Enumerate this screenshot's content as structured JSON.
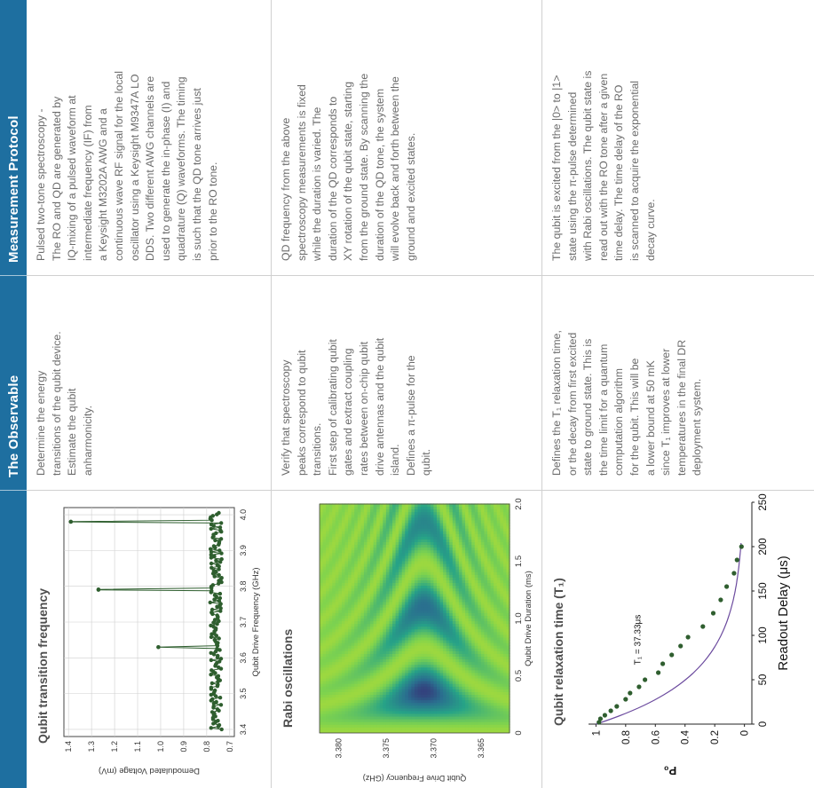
{
  "header": {
    "col1": "",
    "col2": "The Observable",
    "col3": "Measurement Protocol"
  },
  "rows": [
    {
      "panel_title": "Qubit transition frequency",
      "observable": [
        "Determine the energy",
        "transitions of the qubit device.",
        "Estimate the qubit",
        "anharmonicity."
      ],
      "protocol": [
        "Pulsed two-tone spectroscopy -",
        "The RO and QD are generated by",
        "IQ-mixing of a pulsed waveform at",
        "intermediate frequency (IF) from",
        "a Keysight M3202A AWG and a",
        "continuous wave RF signal for the local",
        "oscillator using a Keysight M9347A LO",
        "DDS. Two different AWG channels are",
        "used to generate the in-phase (I) and",
        "quadrature (Q) waveforms. The timing",
        "is such that the QD tone arrives just",
        "prior to the RO tone."
      ]
    },
    {
      "panel_title": "Rabi oscillations",
      "observable": [
        "Verify that spectroscopy",
        "peaks correspond to qubit",
        "transitions.",
        "First step of calibrating qubit",
        "gates and extract coupling",
        "rates between on-chip qubit",
        "drive antennas and the qubit",
        "island.",
        "Defines a π-pulse for the",
        "qubit."
      ],
      "protocol": [
        "QD frequency from the above",
        "spectroscopy measurements is fixed",
        "while the duration is varied. The",
        "duration of the QD corresponds to",
        "XY rotation of the qubit state, starting",
        "from the ground state. By scanning the",
        "duration of the QD tone, the system",
        "will evolve back and forth between the",
        "ground and excited states."
      ]
    },
    {
      "panel_title": "Qubit relaxation time (T₁)",
      "observable": [
        "Defines the T₁ relaxation time,",
        "or the decay from first excited",
        "state to ground state. This is",
        "the time limit for a quantum",
        "computation algorithm",
        "for the qubit. This will be",
        "a lower bound at 50 mK",
        "since T₁ improves at lower",
        "temperatures in the final DR",
        "deployment system."
      ],
      "protocol": [
        "The qubit is excited from the |0> to |1>",
        "state using the π-pulse determined",
        "with Rabi oscillations. The qubit state is",
        "read out with the RO tone after a given",
        "time delay. The time delay of the RO",
        "is scanned to acquire the exponential",
        "decay curve."
      ]
    }
  ],
  "chart_data": [
    {
      "type": "line",
      "title": "Qubit transition frequency",
      "xlabel": "Qubit Drive Frequency (GHz)",
      "ylabel": "Demodulated Voltage (mV)",
      "xlim": [
        3.38,
        4.02
      ],
      "ylim": [
        0.68,
        1.42
      ],
      "xticks": [
        "3.4",
        "3.5",
        "3.6",
        "3.7",
        "3.8",
        "3.9",
        "4.0"
      ],
      "yticks": [
        "0.7",
        "0.8",
        "0.9",
        "1.0",
        "1.1",
        "1.2",
        "1.3",
        "1.4"
      ],
      "baseline": 0.76,
      "peaks": [
        {
          "x": 3.63,
          "y": 1.01
        },
        {
          "x": 3.79,
          "y": 1.27
        },
        {
          "x": 3.98,
          "y": 1.39
        }
      ],
      "color": "#2e5e2e"
    },
    {
      "type": "heatmap",
      "title": "Rabi oscillations",
      "xlabel": "Qubit Drive Duration (ms)",
      "ylabel": "Qubit Drive Frequency (GHz)",
      "xlim": [
        0,
        2.0
      ],
      "ylim": [
        3.362,
        3.382
      ],
      "xticks": [
        "0",
        "0.5",
        "1.0",
        "1.5",
        "2.0"
      ],
      "yticks": [
        "3.380",
        "3.375",
        "3.370",
        "3.365"
      ],
      "resonance": 3.371,
      "period": 0.37,
      "colors": [
        "#3b1a6e",
        "#2a6f8f",
        "#27a387",
        "#7fd34e",
        "#e6e41c"
      ]
    },
    {
      "type": "scatter",
      "title": "Qubit relaxation time (T₁)",
      "xlabel": "Readout Delay (μs)",
      "ylabel": "P₀",
      "annotation": "T₁ = 37.33μs",
      "xlim": [
        0,
        250
      ],
      "ylim": [
        -0.05,
        1.05
      ],
      "xticks": [
        "0",
        "50",
        "100",
        "150",
        "200",
        "250"
      ],
      "yticks": [
        "0",
        "0.2",
        "0.4",
        "0.6",
        "0.8",
        "1"
      ],
      "x": [
        2,
        6,
        10,
        15,
        20,
        28,
        35,
        42,
        50,
        58,
        68,
        78,
        88,
        98,
        110,
        125,
        140,
        155,
        170,
        185,
        200
      ],
      "y": [
        0.98,
        0.97,
        0.94,
        0.9,
        0.86,
        0.8,
        0.77,
        0.71,
        0.67,
        0.58,
        0.55,
        0.49,
        0.43,
        0.38,
        0.28,
        0.21,
        0.16,
        0.12,
        0.07,
        0.05,
        0.02
      ],
      "fit_t1": 37.33,
      "point_color": "#2f5e2f",
      "fit_color": "#6b4a9e"
    }
  ]
}
